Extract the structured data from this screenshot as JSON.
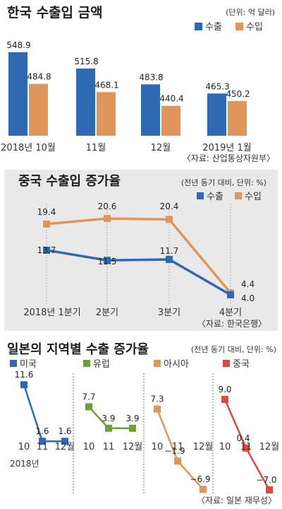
{
  "colors": {
    "export": "#2e69b1",
    "import": "#e0965a",
    "japan_us": "#2e69b1",
    "japan_eu": "#6e9e36",
    "japan_asia": "#e0965a",
    "japan_china": "#dc4a3c",
    "panel_bg": "#e9e9e9"
  },
  "chart_data": [
    {
      "type": "bar",
      "title": "한국 수출입 금액",
      "unit_note": "(단위: 억 달러)",
      "categories": [
        "2018년  10월",
        "11월",
        "12월",
        "2019년  1월"
      ],
      "series": [
        {
          "name": "수출",
          "values": [
            548.9,
            515.8,
            483.8,
            465.3
          ],
          "labels": [
            "548.9",
            "515.8",
            "483.8",
            "465.3"
          ]
        },
        {
          "name": "수입",
          "values": [
            484.8,
            468.1,
            440.4,
            450.2
          ],
          "labels": [
            "484.8",
            "468.1",
            "440.4",
            "450.2"
          ]
        }
      ],
      "ylim": [
        380,
        560
      ],
      "source": "〈자료: 산업통상자원부〉"
    },
    {
      "type": "line",
      "title": "중국 수출입 증가율",
      "unit_note": "(전년 동기 대비, 단위: %)",
      "categories": [
        "2018년 1분기",
        "2분기",
        "3분기",
        "4분기"
      ],
      "series": [
        {
          "name": "수출",
          "values": [
            13.7,
            11.5,
            11.7,
            4.0
          ],
          "labels": [
            "13.7",
            "11.5",
            "11.7",
            "4.0"
          ]
        },
        {
          "name": "수입",
          "values": [
            19.4,
            20.6,
            20.4,
            4.4
          ],
          "labels": [
            "19.4",
            "20.6",
            "20.4",
            "4.4"
          ]
        }
      ],
      "ylim": [
        2,
        22
      ],
      "source": "〈자료: 한국은행〉"
    },
    {
      "type": "line",
      "title": "일본의 지역별 수출 증가율",
      "unit_note": "(전년 동기 대비, 단위: %)",
      "ylim": [
        -7.5,
        12
      ],
      "year_label": "2018년",
      "panels": [
        {
          "name": "미국",
          "categories": [
            "10",
            "11",
            "12월"
          ],
          "values": [
            11.6,
            1.6,
            1.6
          ],
          "labels": [
            "11.6",
            "1.6",
            "1.6"
          ]
        },
        {
          "name": "유럽",
          "categories": [
            "10",
            "11",
            "12월"
          ],
          "values": [
            7.7,
            3.9,
            3.9
          ],
          "labels": [
            "7.7",
            "3.9",
            "3.9"
          ]
        },
        {
          "name": "아시아",
          "categories": [
            "10",
            "11",
            "12월"
          ],
          "values": [
            7.3,
            -1.9,
            -6.9
          ],
          "labels": [
            "7.3",
            "−1.9",
            "−6.9"
          ]
        },
        {
          "name": "중국",
          "categories": [
            "10",
            "11",
            "12월"
          ],
          "values": [
            9.0,
            0.4,
            -7.0
          ],
          "labels": [
            "9.0",
            "0.4",
            "−7.0"
          ]
        }
      ],
      "source": "〈자료: 일본 재무성〉"
    }
  ]
}
